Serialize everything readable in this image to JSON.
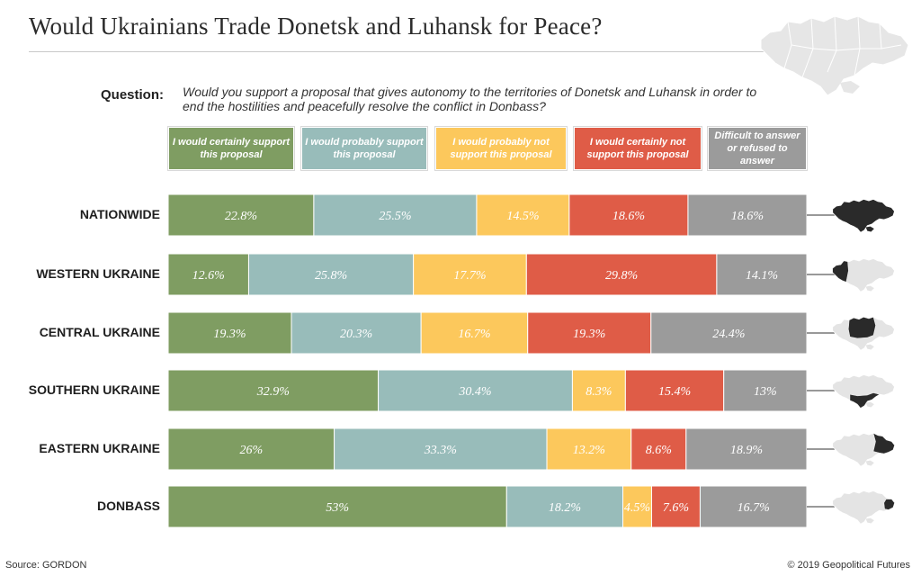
{
  "header": {
    "title": "Would Ukrainians Trade Donetsk and Luhansk for Peace?"
  },
  "question": {
    "label": "Question:",
    "text": "Would you support a proposal that gives autonomy to the territories of Donetsk and Luhansk in order to end the hostilities and peacefully resolve the conflict in Donbass?"
  },
  "colors": {
    "certainly_support": "#7f9d62",
    "probably_support": "#98bcba",
    "probably_not": "#fcc85c",
    "certainly_not": "#df5c47",
    "difficult": "#9b9b9b",
    "map_dark": "#2a2a2a",
    "map_light": "#e4e4e4"
  },
  "chart_data": {
    "type": "bar",
    "orientation": "horizontal",
    "stacked": true,
    "title": "Would Ukrainians Trade Donetsk and Luhansk for Peace?",
    "categories": [
      "NATIONWIDE",
      "WESTERN UKRAINE",
      "CENTRAL UKRAINE",
      "SOUTHERN UKRAINE",
      "EASTERN UKRAINE",
      "DONBASS"
    ],
    "series": [
      {
        "name": "I would certainly support this proposal",
        "color": "#7f9d62",
        "values": [
          22.8,
          12.6,
          19.3,
          32.9,
          26,
          53
        ],
        "labels": [
          "22.8%",
          "12.6%",
          "19.3%",
          "32.9%",
          "26%",
          "53%"
        ]
      },
      {
        "name": "I would probably support this proposal",
        "color": "#98bcba",
        "values": [
          25.5,
          25.8,
          20.3,
          30.4,
          33.3,
          18.2
        ],
        "labels": [
          "25.5%",
          "25.8%",
          "20.3%",
          "30.4%",
          "33.3%",
          "18.2%"
        ]
      },
      {
        "name": "I would probably not support this proposal",
        "color": "#fcc85c",
        "values": [
          14.5,
          17.7,
          16.7,
          8.3,
          13.2,
          4.5
        ],
        "labels": [
          "14.5%",
          "17.7%",
          "16.7%",
          "8.3%",
          "13.2%",
          "4.5%"
        ]
      },
      {
        "name": "I would certainly not support this proposal",
        "color": "#df5c47",
        "values": [
          18.6,
          29.8,
          19.3,
          15.4,
          8.6,
          7.6
        ],
        "labels": [
          "18.6%",
          "29.8%",
          "19.3%",
          "15.4%",
          "8.6%",
          "7.6%"
        ]
      },
      {
        "name": "Difficult to answer or refused to answer",
        "color": "#9b9b9b",
        "values": [
          18.6,
          14.1,
          24.4,
          13,
          18.9,
          16.7
        ],
        "labels": [
          "18.6%",
          "14.1%",
          "24.4%",
          "13%",
          "18.9%",
          "16.7%"
        ]
      }
    ],
    "region_highlight": [
      "all",
      "west",
      "center",
      "south",
      "east",
      "donbass"
    ],
    "xlim": [
      0,
      100
    ],
    "legend_position": "top"
  },
  "legend": [
    {
      "label": "I would certainly support this proposal"
    },
    {
      "label": "I would probably support this proposal"
    },
    {
      "label": "I would probably not support this proposal"
    },
    {
      "label": "I would certainly not support this proposal"
    },
    {
      "label": "Difficult to answer or refused to answer"
    }
  ],
  "footer": {
    "source": "Source: GORDON",
    "copyright": "© 2019 Geopolitical Futures"
  }
}
